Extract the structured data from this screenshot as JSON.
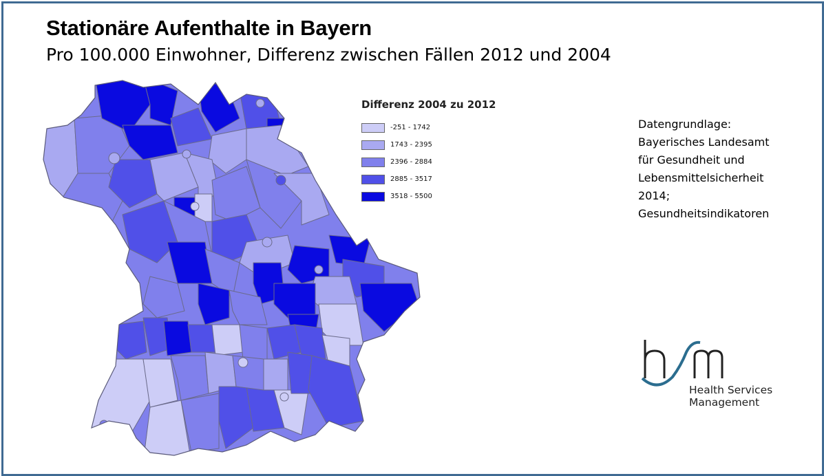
{
  "header": {
    "title": "Stationäre Aufenthalte in Bayern",
    "subtitle": "Pro 100.000 Einwohner, Differenz zwischen Fällen 2012 und 2004"
  },
  "legend": {
    "title": "Differenz 2004 zu 2012",
    "classes": [
      {
        "label": "-251 - 1742",
        "color": "#cdcdf7"
      },
      {
        "label": "1743 - 2395",
        "color": "#a9a9f1"
      },
      {
        "label": "2396 - 2884",
        "color": "#8080ec"
      },
      {
        "label": "2885 - 3517",
        "color": "#5050e8"
      },
      {
        "label": "3518 - 5500",
        "color": "#0a0ae0"
      }
    ]
  },
  "source": {
    "lines": [
      "Datengrundlage:",
      "Bayerisches Landesamt",
      "für Gesundheit und",
      "Lebensmittelsicherheit",
      "2014;",
      "Gesundheitsindikatoren"
    ]
  },
  "logo": {
    "lines": [
      "Health Services",
      "Management"
    ],
    "accent_color": "#2b6d8f"
  }
}
